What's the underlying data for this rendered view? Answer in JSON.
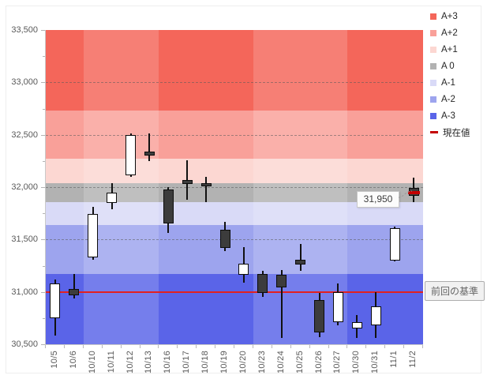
{
  "annotations": {
    "current_value_label": "31,950",
    "baseline_label": "前回の基準"
  },
  "legend": {
    "items": [
      {
        "label": "A+3",
        "color": "#f4665a",
        "type": "square"
      },
      {
        "label": "A+2",
        "color": "#f9a099",
        "type": "square"
      },
      {
        "label": "A+1",
        "color": "#fcd7d2",
        "type": "square"
      },
      {
        "label": "A 0",
        "color": "#b2b2b2",
        "type": "square"
      },
      {
        "label": "A-1",
        "color": "#d9daf7",
        "type": "square"
      },
      {
        "label": "A-2",
        "color": "#9da4ee",
        "type": "square"
      },
      {
        "label": "A-3",
        "color": "#5a64e8",
        "type": "square"
      },
      {
        "label": "現在値",
        "color": "#c40000",
        "type": "dash"
      }
    ]
  },
  "chart_data": {
    "type": "candlestick",
    "ylim": [
      30500,
      33500
    ],
    "grid": "dashed-horizontal",
    "legend_position": "right",
    "y_ticks": [
      {
        "v": 33500,
        "label": "33,500"
      },
      {
        "v": 33000,
        "label": "33,000"
      },
      {
        "v": 32500,
        "label": "32,500"
      },
      {
        "v": 32000,
        "label": "32,000"
      },
      {
        "v": 31500,
        "label": "31,500"
      },
      {
        "v": 31000,
        "label": "31,000"
      },
      {
        "v": 30500,
        "label": "30,500"
      }
    ],
    "minor_tick_step": 250,
    "bands": [
      {
        "name": "A+3",
        "from": 32730,
        "to": 33500,
        "color": "#f4665a"
      },
      {
        "name": "A+2",
        "from": 32270,
        "to": 32730,
        "color": "#f9a099"
      },
      {
        "name": "A+1",
        "from": 32040,
        "to": 32270,
        "color": "#fcd7d2"
      },
      {
        "name": "A 0",
        "from": 31860,
        "to": 32040,
        "color": "#b2b2b2"
      },
      {
        "name": "A-1",
        "from": 31640,
        "to": 31860,
        "color": "#d9daf7"
      },
      {
        "name": "A-2",
        "from": 31170,
        "to": 31640,
        "color": "#9da4ee"
      },
      {
        "name": "A-3",
        "from": 30500,
        "to": 31170,
        "color": "#5a64e8"
      }
    ],
    "week_stripes": [
      {
        "start": 2,
        "end": 5,
        "light": true
      },
      {
        "start": 11,
        "end": 15,
        "light": true
      }
    ],
    "baseline": {
      "value": 31000,
      "color": "#e32020",
      "label": "前回の基準"
    },
    "current": {
      "value": 31950,
      "label": "31,950",
      "color": "#c40000"
    },
    "candles": [
      {
        "date": "10/5",
        "open": 30750,
        "high": 31120,
        "low": 30580,
        "close": 31080
      },
      {
        "date": "10/6",
        "open": 31030,
        "high": 31170,
        "low": 30940,
        "close": 30970
      },
      {
        "date": "10/10",
        "open": 31330,
        "high": 31810,
        "low": 31310,
        "close": 31740
      },
      {
        "date": "10/11",
        "open": 31850,
        "high": 32040,
        "low": 31790,
        "close": 31950
      },
      {
        "date": "10/12",
        "open": 32110,
        "high": 32510,
        "low": 32100,
        "close": 32500
      },
      {
        "date": "10/13",
        "open": 32340,
        "high": 32510,
        "low": 32250,
        "close": 32300
      },
      {
        "date": "10/16",
        "open": 31980,
        "high": 32000,
        "low": 31560,
        "close": 31650
      },
      {
        "date": "10/17",
        "open": 32070,
        "high": 32260,
        "low": 31880,
        "close": 32030
      },
      {
        "date": "10/18",
        "open": 32040,
        "high": 32100,
        "low": 31860,
        "close": 32010
      },
      {
        "date": "10/19",
        "open": 31590,
        "high": 31670,
        "low": 31390,
        "close": 31420
      },
      {
        "date": "10/20",
        "open": 31160,
        "high": 31430,
        "low": 31090,
        "close": 31270
      },
      {
        "date": "10/23",
        "open": 31170,
        "high": 31200,
        "low": 30950,
        "close": 30990
      },
      {
        "date": "10/24",
        "open": 31160,
        "high": 31210,
        "low": 30560,
        "close": 31040
      },
      {
        "date": "10/25",
        "open": 31310,
        "high": 31460,
        "low": 31200,
        "close": 31260
      },
      {
        "date": "10/26",
        "open": 30920,
        "high": 30990,
        "low": 30570,
        "close": 30610
      },
      {
        "date": "10/27",
        "open": 30710,
        "high": 31080,
        "low": 30680,
        "close": 31000
      },
      {
        "date": "10/30",
        "open": 30650,
        "high": 30780,
        "low": 30560,
        "close": 30710
      },
      {
        "date": "10/31",
        "open": 30680,
        "high": 31000,
        "low": 30560,
        "close": 30860
      },
      {
        "date": "11/1",
        "open": 31300,
        "high": 31620,
        "low": 31290,
        "close": 31610
      },
      {
        "date": "11/2",
        "open": 31990,
        "high": 32090,
        "low": 31860,
        "close": 31920,
        "current": 31950
      }
    ]
  }
}
